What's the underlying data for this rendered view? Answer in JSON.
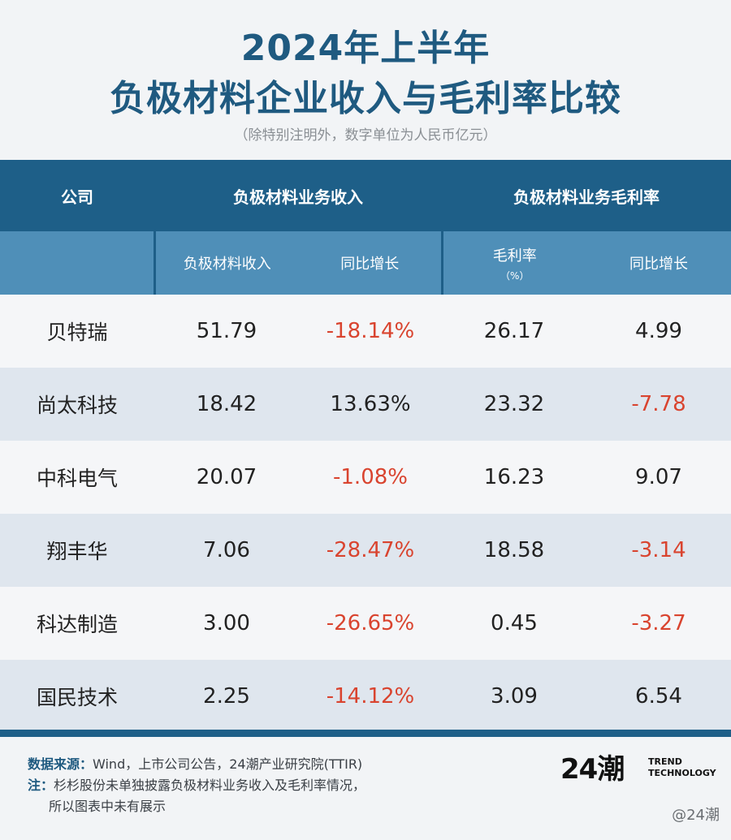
{
  "title": {
    "line1": "2024年上半年",
    "line2": "负极材料企业收入与毛利率比较",
    "subtitle": "（除特别注明外，数字单位为人民币亿元）"
  },
  "chart_data": {
    "type": "table",
    "header_groups": [
      "公司",
      "负极材料业务收入",
      "负极材料业务毛利率"
    ],
    "columns": [
      "负极材料收入",
      "同比增长",
      "毛利率",
      "同比增长"
    ],
    "column_units": [
      "",
      "",
      "（%）",
      ""
    ],
    "rows": [
      {
        "company": "贝特瑞",
        "revenue": "51.79",
        "revenue_yoy": "-18.14%",
        "margin": "26.17",
        "margin_yoy": "4.99",
        "revenue_yoy_negative": true,
        "margin_yoy_negative": false
      },
      {
        "company": "尚太科技",
        "revenue": "18.42",
        "revenue_yoy": "13.63%",
        "margin": "23.32",
        "margin_yoy": "-7.78",
        "revenue_yoy_negative": false,
        "margin_yoy_negative": true
      },
      {
        "company": "中科电气",
        "revenue": "20.07",
        "revenue_yoy": "-1.08%",
        "margin": "16.23",
        "margin_yoy": "9.07",
        "revenue_yoy_negative": true,
        "margin_yoy_negative": false
      },
      {
        "company": "翔丰华",
        "revenue": "7.06",
        "revenue_yoy": "-28.47%",
        "margin": "18.58",
        "margin_yoy": "-3.14",
        "revenue_yoy_negative": true,
        "margin_yoy_negative": true
      },
      {
        "company": "科达制造",
        "revenue": "3.00",
        "revenue_yoy": "-26.65%",
        "margin": "0.45",
        "margin_yoy": "-3.27",
        "revenue_yoy_negative": true,
        "margin_yoy_negative": true
      },
      {
        "company": "国民技术",
        "revenue": "2.25",
        "revenue_yoy": "-14.12%",
        "margin": "3.09",
        "margin_yoy": "6.54",
        "revenue_yoy_negative": true,
        "margin_yoy_negative": false
      }
    ]
  },
  "footer": {
    "source_label": "数据来源：",
    "source_text": "Wind，上市公司公告，24潮产业研究院(TTIR)",
    "note_label": "注：",
    "note_line1": "杉杉股份未单独披露负极材料业务收入及毛利率情况，",
    "note_line2": "所以图表中未有展示"
  },
  "logo": {
    "mark": "24潮",
    "line1": "TREND",
    "line2": "TECHNOLOGY"
  },
  "watermark": "@24潮",
  "colors": {
    "header_dark": "#1e5f88",
    "header_light": "#4f8fb8",
    "title": "#1f5a80",
    "negative": "#d9442f"
  }
}
